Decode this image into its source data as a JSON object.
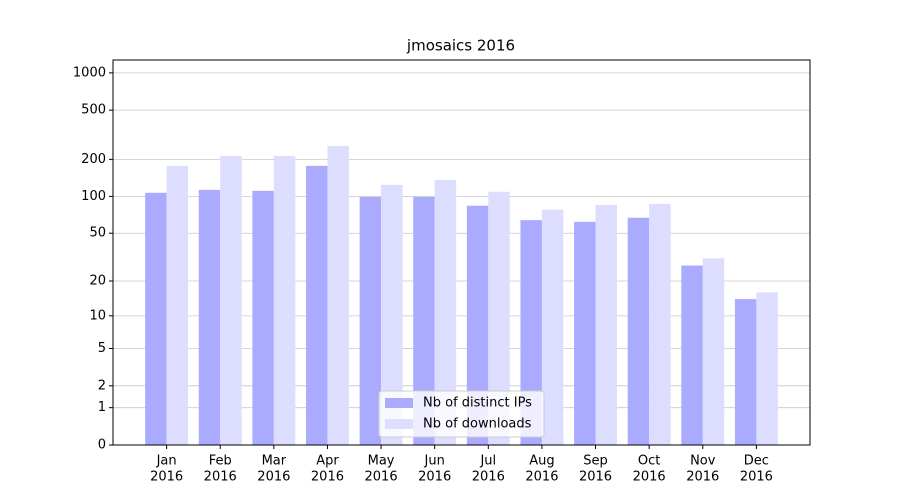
{
  "chart_data": {
    "type": "bar",
    "title": "jmosaics 2016",
    "categories": [
      [
        "Jan",
        "2016"
      ],
      [
        "Feb",
        "2016"
      ],
      [
        "Mar",
        "2016"
      ],
      [
        "Apr",
        "2016"
      ],
      [
        "May",
        "2016"
      ],
      [
        "Jun",
        "2016"
      ],
      [
        "Jul",
        "2016"
      ],
      [
        "Aug",
        "2016"
      ],
      [
        "Sep",
        "2016"
      ],
      [
        "Oct",
        "2016"
      ],
      [
        "Nov",
        "2016"
      ],
      [
        "Dec",
        "2016"
      ]
    ],
    "series": [
      {
        "name": "Nb of distinct IPs",
        "color": "#aaaaff",
        "values": [
          107,
          113,
          111,
          177,
          99,
          99,
          84,
          64,
          62,
          67,
          27,
          14
        ]
      },
      {
        "name": "Nb of downloads",
        "color": "#ddddff",
        "values": [
          177,
          213,
          213,
          257,
          124,
          136,
          109,
          78,
          85,
          87,
          31,
          16
        ]
      }
    ],
    "yscale": "log1p",
    "ylim": [
      0,
      1270
    ],
    "yticks": [
      0,
      1,
      2,
      5,
      10,
      20,
      50,
      100,
      200,
      500,
      1000
    ],
    "grid": true,
    "legend": "lower center"
  }
}
